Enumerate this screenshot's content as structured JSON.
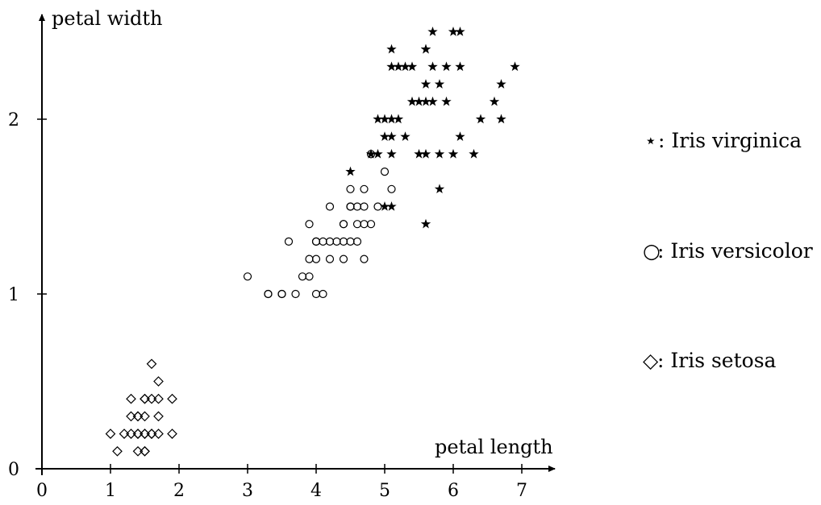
{
  "chart_data": {
    "type": "scatter",
    "title": "",
    "xlabel": "petal length",
    "ylabel": "petal width",
    "xlim": [
      0,
      7.5
    ],
    "ylim": [
      0,
      2.6
    ],
    "x_ticks": [
      "0",
      "1",
      "2",
      "3",
      "4",
      "5",
      "6",
      "7"
    ],
    "y_ticks": [
      "0",
      "1",
      "2"
    ],
    "grid": false,
    "legend_position": "right",
    "series": [
      {
        "name": "Iris virginica",
        "marker": "star",
        "points": [
          [
            5.7,
            2.5
          ],
          [
            6.0,
            2.5
          ],
          [
            6.1,
            2.5
          ],
          [
            5.1,
            2.4
          ],
          [
            5.6,
            2.4
          ],
          [
            5.6,
            2.4
          ],
          [
            5.1,
            2.3
          ],
          [
            5.2,
            2.3
          ],
          [
            5.3,
            2.3
          ],
          [
            5.4,
            2.3
          ],
          [
            5.7,
            2.3
          ],
          [
            5.9,
            2.3
          ],
          [
            6.1,
            2.3
          ],
          [
            6.9,
            2.3
          ],
          [
            5.6,
            2.2
          ],
          [
            5.8,
            2.2
          ],
          [
            6.7,
            2.2
          ],
          [
            5.4,
            2.1
          ],
          [
            5.5,
            2.1
          ],
          [
            5.6,
            2.1
          ],
          [
            5.7,
            2.1
          ],
          [
            5.9,
            2.1
          ],
          [
            6.6,
            2.1
          ],
          [
            4.9,
            2.0
          ],
          [
            5.0,
            2.0
          ],
          [
            5.1,
            2.0
          ],
          [
            5.2,
            2.0
          ],
          [
            6.4,
            2.0
          ],
          [
            6.7,
            2.0
          ],
          [
            5.0,
            1.9
          ],
          [
            5.1,
            1.9
          ],
          [
            5.3,
            1.9
          ],
          [
            6.1,
            1.9
          ],
          [
            4.8,
            1.8
          ],
          [
            4.9,
            1.8
          ],
          [
            5.1,
            1.8
          ],
          [
            5.5,
            1.8
          ],
          [
            5.6,
            1.8
          ],
          [
            5.8,
            1.8
          ],
          [
            6.0,
            1.8
          ],
          [
            6.3,
            1.8
          ],
          [
            4.5,
            1.7
          ],
          [
            5.8,
            1.6
          ],
          [
            5.0,
            1.5
          ],
          [
            5.1,
            1.5
          ],
          [
            5.6,
            1.4
          ]
        ]
      },
      {
        "name": "Iris versicolor",
        "marker": "circle",
        "points": [
          [
            4.8,
            1.8
          ],
          [
            5.0,
            1.7
          ],
          [
            4.5,
            1.6
          ],
          [
            4.7,
            1.6
          ],
          [
            5.1,
            1.6
          ],
          [
            4.2,
            1.5
          ],
          [
            4.5,
            1.5
          ],
          [
            4.5,
            1.5
          ],
          [
            4.6,
            1.5
          ],
          [
            4.7,
            1.5
          ],
          [
            4.9,
            1.5
          ],
          [
            3.9,
            1.4
          ],
          [
            4.4,
            1.4
          ],
          [
            4.4,
            1.4
          ],
          [
            4.6,
            1.4
          ],
          [
            4.7,
            1.4
          ],
          [
            4.8,
            1.4
          ],
          [
            3.6,
            1.3
          ],
          [
            4.0,
            1.3
          ],
          [
            4.0,
            1.3
          ],
          [
            4.1,
            1.3
          ],
          [
            4.2,
            1.3
          ],
          [
            4.3,
            1.3
          ],
          [
            4.4,
            1.3
          ],
          [
            4.5,
            1.3
          ],
          [
            4.6,
            1.3
          ],
          [
            3.9,
            1.2
          ],
          [
            4.0,
            1.2
          ],
          [
            4.2,
            1.2
          ],
          [
            4.4,
            1.2
          ],
          [
            4.7,
            1.2
          ],
          [
            3.0,
            1.1
          ],
          [
            3.8,
            1.1
          ],
          [
            3.9,
            1.1
          ],
          [
            3.3,
            1.0
          ],
          [
            3.3,
            1.0
          ],
          [
            3.5,
            1.0
          ],
          [
            3.5,
            1.0
          ],
          [
            3.7,
            1.0
          ],
          [
            4.0,
            1.0
          ],
          [
            4.1,
            1.0
          ]
        ]
      },
      {
        "name": "Iris setosa",
        "marker": "diamond",
        "points": [
          [
            1.6,
            0.6
          ],
          [
            1.7,
            0.5
          ],
          [
            1.3,
            0.4
          ],
          [
            1.5,
            0.4
          ],
          [
            1.5,
            0.4
          ],
          [
            1.6,
            0.4
          ],
          [
            1.7,
            0.4
          ],
          [
            1.9,
            0.4
          ],
          [
            1.3,
            0.3
          ],
          [
            1.4,
            0.3
          ],
          [
            1.4,
            0.3
          ],
          [
            1.5,
            0.3
          ],
          [
            1.7,
            0.3
          ],
          [
            1.0,
            0.2
          ],
          [
            1.2,
            0.2
          ],
          [
            1.3,
            0.2
          ],
          [
            1.4,
            0.2
          ],
          [
            1.4,
            0.2
          ],
          [
            1.5,
            0.2
          ],
          [
            1.5,
            0.2
          ],
          [
            1.6,
            0.2
          ],
          [
            1.6,
            0.2
          ],
          [
            1.7,
            0.2
          ],
          [
            1.9,
            0.2
          ],
          [
            1.1,
            0.1
          ],
          [
            1.4,
            0.1
          ],
          [
            1.5,
            0.1
          ],
          [
            1.5,
            0.1
          ]
        ]
      }
    ]
  },
  "legend": {
    "entries": [
      {
        "symbol": "⋆",
        "marker": "star",
        "label": ": Iris virginica"
      },
      {
        "symbol": "○",
        "marker": "circle",
        "label": ": Iris versicolor"
      },
      {
        "symbol": "◇",
        "marker": "diamond",
        "label": ": Iris setosa"
      }
    ]
  }
}
